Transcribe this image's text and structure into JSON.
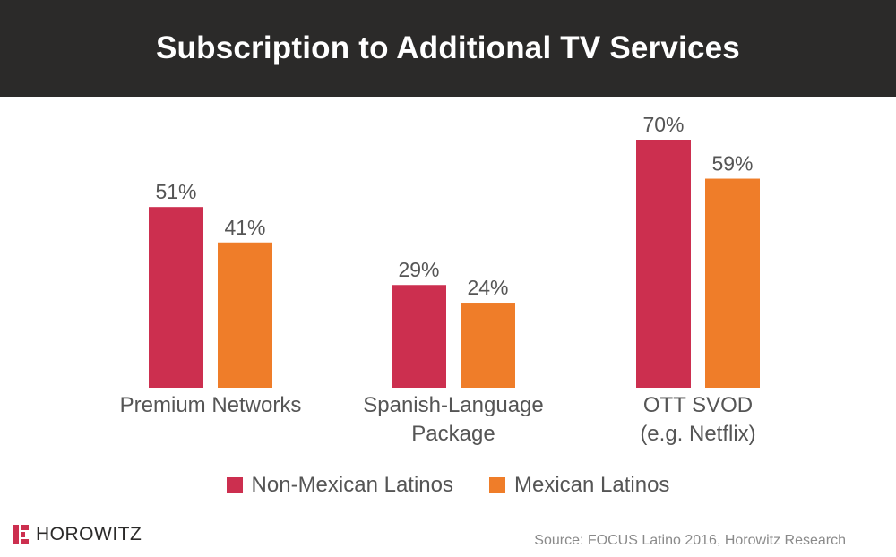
{
  "title": "Subscription to Additional TV Services",
  "chart_data": {
    "type": "bar",
    "title": "Subscription to Additional TV Services",
    "categories": [
      [
        "Premium Networks"
      ],
      [
        "Spanish-Language",
        "Package"
      ],
      [
        "OTT SVOD",
        "(e.g. Netflix)"
      ]
    ],
    "series": [
      {
        "name": "Non-Mexican Latinos",
        "values": [
          51,
          29,
          70
        ],
        "color": "#cc2f4f"
      },
      {
        "name": "Mexican Latinos",
        "values": [
          41,
          24,
          59
        ],
        "color": "#ef7d29"
      }
    ],
    "value_suffix": "%",
    "ylim": [
      0,
      70
    ],
    "grid": false,
    "legend_position": "bottom-center"
  },
  "legend": {
    "items": [
      {
        "label": "Non-Mexican Latinos",
        "color": "#cc2f4f"
      },
      {
        "label": "Mexican Latinos",
        "color": "#ef7d29"
      }
    ]
  },
  "logo": {
    "text": "HOROWITZ",
    "icon": "horowitz-logo-icon",
    "color": "#cc2f4f"
  },
  "source": "Source: FOCUS Latino 2016, Horowitz Research",
  "colors": {
    "title_bg": "#2b2a29",
    "title_text": "#ffffff",
    "label_text": "#555555",
    "source_text": "#8a8a8a"
  }
}
